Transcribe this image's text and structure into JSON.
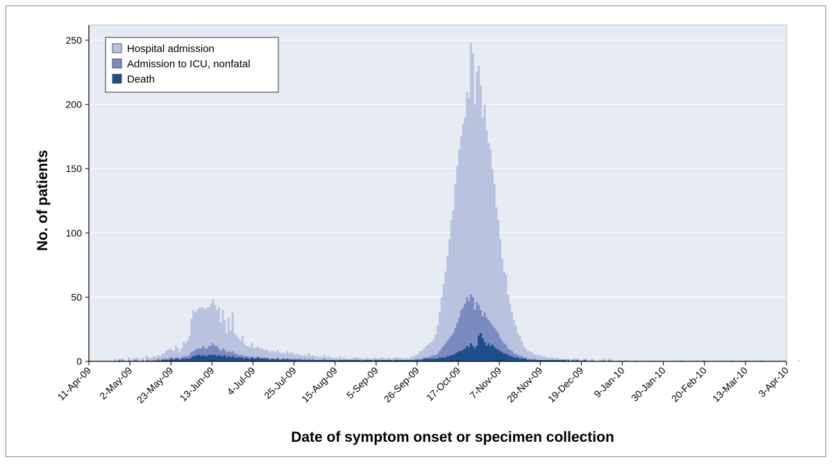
{
  "chart_data": {
    "type": "bar",
    "title": "",
    "xlabel": "Date of symptom onset or specimen collection",
    "ylabel": "No. of patients",
    "ylim": [
      0,
      250
    ],
    "yticks": [
      0,
      50,
      100,
      150,
      200,
      250
    ],
    "grid": true,
    "legend_position": "top-left",
    "x_tick_labels": [
      "11-Apr-09",
      "2-May-09",
      "23-May-09",
      "13-Jun-09",
      "4-Jul-09",
      "25-Jul-09",
      "15-Aug-09",
      "5-Sep-09",
      "26-Sep-09",
      "17-Oct-09",
      "7-Nov-09",
      "28-Nov-09",
      "19-Dec-09",
      "9-Jan-10",
      "30-Jan-10",
      "20-Feb-10",
      "13-Mar-10",
      "3-Apr-10"
    ],
    "x_start_label": "11-Apr-09",
    "x_days_total": 357,
    "bar_unit": "days",
    "series": [
      {
        "name": "Hospital admission",
        "color": "#b9c3e0",
        "values": [
          0,
          0,
          0,
          0,
          0,
          0,
          0,
          0,
          0,
          0,
          0,
          0,
          0,
          2,
          0,
          2,
          2,
          2,
          0,
          0,
          3,
          0,
          2,
          2,
          3,
          2,
          0,
          3,
          0,
          4,
          3,
          2,
          3,
          4,
          3,
          5,
          4,
          6,
          6,
          8,
          9,
          10,
          9,
          8,
          12,
          10,
          7,
          10,
          15,
          14,
          16,
          20,
          33,
          40,
          38,
          40,
          42,
          42,
          42,
          40,
          42,
          42,
          45,
          48,
          44,
          40,
          42,
          30,
          40,
          32,
          22,
          34,
          24,
          38,
          22,
          20,
          18,
          16,
          20,
          14,
          12,
          12,
          11,
          14,
          10,
          11,
          12,
          10,
          10,
          9,
          9,
          9,
          7,
          8,
          8,
          7,
          9,
          7,
          6,
          7,
          6,
          8,
          6,
          7,
          6,
          5,
          6,
          5,
          5,
          4,
          5,
          4,
          6,
          4,
          5,
          4,
          4,
          3,
          4,
          3,
          5,
          3,
          4,
          3,
          3,
          2,
          3,
          2,
          4,
          2,
          3,
          2,
          2,
          2,
          2,
          3,
          3,
          3,
          2,
          2,
          2,
          2,
          3,
          2,
          2,
          2,
          3,
          2,
          2,
          3,
          3,
          2,
          2,
          3,
          2,
          2,
          3,
          3,
          3,
          3,
          2,
          2,
          3,
          2,
          3,
          4,
          4,
          5,
          6,
          8,
          8,
          10,
          12,
          13,
          14,
          15,
          17,
          21,
          28,
          38,
          50,
          60,
          70,
          82,
          95,
          110,
          118,
          138,
          152,
          165,
          175,
          185,
          190,
          210,
          205,
          248,
          240,
          200,
          225,
          230,
          215,
          190,
          200,
          180,
          170,
          165,
          150,
          138,
          120,
          110,
          95,
          80,
          70,
          68,
          52,
          45,
          38,
          32,
          28,
          22,
          20,
          16,
          12,
          10,
          8,
          8,
          7,
          6,
          5,
          5,
          5,
          4,
          4,
          4,
          3,
          3,
          3,
          3,
          2,
          3,
          2,
          2,
          2,
          2,
          2,
          2,
          1,
          2,
          2,
          2,
          2,
          1,
          1,
          2,
          2,
          0,
          1,
          2,
          1,
          0,
          0,
          1,
          1,
          2,
          0,
          1,
          2,
          1,
          0,
          0,
          0,
          1,
          0,
          0,
          1,
          1,
          0,
          0,
          0,
          1,
          0,
          0,
          0,
          0,
          0,
          0,
          0,
          1,
          0,
          0,
          0,
          0,
          0,
          0,
          0,
          0,
          0,
          0,
          0,
          0,
          0,
          0,
          0,
          1,
          0,
          0,
          0,
          0,
          0,
          0,
          0,
          0,
          0,
          0,
          1,
          0,
          0,
          0,
          0,
          0,
          0,
          0,
          0,
          0,
          0,
          0,
          0,
          0,
          0,
          1,
          0,
          0,
          0,
          0,
          0,
          0,
          0,
          0,
          0,
          0,
          0,
          0,
          0,
          0,
          1,
          0,
          0,
          0,
          0,
          0,
          0,
          0,
          0,
          0,
          0,
          0,
          0,
          0,
          0,
          0,
          0,
          0,
          0,
          1,
          0,
          0,
          0,
          0,
          0,
          0,
          0,
          0,
          0,
          0,
          0,
          0,
          0,
          0,
          0,
          0,
          0,
          0,
          0,
          0,
          0,
          0,
          0,
          0
        ]
      },
      {
        "name": "Admission to ICU, nonfatal",
        "color": "#7b8bbf",
        "values": [
          0,
          0,
          0,
          0,
          0,
          0,
          0,
          0,
          0,
          0,
          0,
          0,
          0,
          0,
          0,
          1,
          0,
          1,
          0,
          0,
          1,
          0,
          0,
          1,
          1,
          0,
          0,
          1,
          0,
          1,
          1,
          0,
          1,
          1,
          1,
          2,
          1,
          2,
          2,
          2,
          2,
          3,
          3,
          2,
          3,
          3,
          2,
          3,
          4,
          4,
          4,
          5,
          7,
          8,
          9,
          10,
          10,
          10,
          12,
          10,
          10,
          12,
          12,
          14,
          12,
          12,
          10,
          8,
          10,
          9,
          7,
          8,
          7,
          8,
          6,
          6,
          5,
          5,
          5,
          4,
          4,
          4,
          3,
          4,
          3,
          3,
          4,
          3,
          3,
          3,
          3,
          3,
          2,
          2,
          2,
          2,
          3,
          2,
          2,
          2,
          2,
          2,
          2,
          2,
          2,
          2,
          2,
          2,
          2,
          1,
          2,
          1,
          2,
          1,
          2,
          1,
          1,
          1,
          1,
          1,
          2,
          1,
          1,
          1,
          1,
          1,
          1,
          1,
          1,
          1,
          1,
          1,
          1,
          1,
          1,
          1,
          1,
          1,
          1,
          1,
          1,
          1,
          1,
          1,
          1,
          1,
          1,
          1,
          1,
          1,
          1,
          1,
          1,
          1,
          1,
          1,
          1,
          1,
          1,
          1,
          1,
          1,
          1,
          1,
          1,
          1,
          1,
          2,
          2,
          2,
          2,
          3,
          3,
          3,
          4,
          4,
          5,
          5,
          6,
          8,
          10,
          12,
          14,
          16,
          18,
          20,
          22,
          26,
          30,
          34,
          40,
          42,
          45,
          50,
          47,
          52,
          50,
          40,
          46,
          44,
          40,
          35,
          38,
          34,
          32,
          30,
          28,
          26,
          24,
          22,
          18,
          16,
          14,
          13,
          10,
          9,
          8,
          6,
          6,
          5,
          4,
          4,
          3,
          3,
          2,
          2,
          2,
          2,
          2,
          1,
          1,
          1,
          1,
          1,
          1,
          1,
          1,
          1,
          1,
          1,
          1,
          1,
          1,
          1,
          1,
          1,
          0,
          1,
          1,
          1,
          1,
          0,
          0,
          1,
          1,
          0,
          0,
          1,
          0,
          0,
          0,
          0,
          0,
          1,
          0,
          0,
          1,
          0,
          0,
          0,
          0,
          0,
          0,
          0,
          0,
          0,
          0,
          0,
          0,
          0,
          0,
          0,
          0,
          0,
          0,
          0,
          0,
          0,
          0,
          0,
          0,
          0,
          0,
          0,
          0,
          0,
          0,
          0,
          0,
          0,
          0,
          0,
          0,
          0,
          0,
          0,
          0,
          0,
          0,
          0,
          0,
          0,
          0,
          0,
          0,
          0,
          0,
          0,
          0,
          0,
          0,
          0,
          0,
          0,
          0,
          0,
          0,
          0,
          0,
          0,
          0,
          0,
          0,
          0,
          0,
          0,
          0,
          0,
          0,
          0,
          0,
          0,
          0,
          0,
          0,
          0,
          0,
          0,
          0,
          0,
          0,
          0,
          0,
          0,
          0,
          0,
          0,
          0,
          0,
          0,
          0,
          0,
          0,
          0,
          0,
          0,
          0,
          0,
          0,
          0,
          0,
          0,
          0,
          0,
          0,
          0,
          0,
          0,
          0,
          0
        ]
      },
      {
        "name": "Death",
        "color": "#1b4f8c",
        "values": [
          0,
          0,
          0,
          0,
          0,
          0,
          0,
          0,
          0,
          0,
          0,
          0,
          0,
          0,
          0,
          0,
          0,
          0,
          0,
          0,
          0,
          0,
          0,
          0,
          0,
          0,
          0,
          0,
          0,
          0,
          0,
          0,
          0,
          0,
          0,
          1,
          0,
          1,
          1,
          1,
          1,
          1,
          2,
          1,
          2,
          2,
          1,
          2,
          2,
          2,
          2,
          2,
          3,
          4,
          4,
          5,
          5,
          4,
          5,
          4,
          4,
          5,
          5,
          5,
          5,
          4,
          5,
          4,
          4,
          5,
          3,
          4,
          3,
          4,
          3,
          3,
          3,
          3,
          3,
          2,
          3,
          2,
          2,
          3,
          2,
          2,
          3,
          2,
          2,
          2,
          2,
          2,
          1,
          2,
          2,
          1,
          2,
          1,
          1,
          2,
          1,
          2,
          1,
          1,
          1,
          1,
          1,
          1,
          1,
          1,
          1,
          1,
          1,
          1,
          1,
          1,
          1,
          1,
          1,
          1,
          1,
          1,
          1,
          1,
          1,
          1,
          0,
          1,
          1,
          1,
          1,
          1,
          1,
          1,
          1,
          1,
          1,
          1,
          1,
          0,
          1,
          1,
          1,
          1,
          1,
          0,
          1,
          1,
          1,
          1,
          1,
          1,
          1,
          1,
          1,
          0,
          1,
          1,
          1,
          1,
          1,
          1,
          1,
          1,
          1,
          1,
          1,
          1,
          1,
          1,
          1,
          2,
          2,
          2,
          2,
          2,
          2,
          2,
          2,
          3,
          3,
          3,
          3,
          4,
          4,
          5,
          5,
          6,
          7,
          8,
          8,
          9,
          10,
          12,
          11,
          14,
          12,
          10,
          12,
          20,
          22,
          18,
          15,
          12,
          14,
          12,
          13,
          11,
          10,
          9,
          8,
          7,
          6,
          6,
          5,
          4,
          4,
          3,
          3,
          3,
          2,
          2,
          2,
          2,
          1,
          1,
          1,
          1,
          1,
          1,
          1,
          1,
          1,
          1,
          1,
          1,
          1,
          1,
          1,
          1,
          1,
          1,
          1,
          1,
          0,
          1,
          0,
          1,
          0,
          1,
          0,
          0,
          0,
          1,
          0,
          0,
          0,
          0,
          0,
          0,
          0,
          0,
          0,
          0,
          0,
          0,
          0,
          0,
          0,
          0,
          0,
          0,
          0,
          0,
          0,
          0,
          0,
          0,
          0,
          0,
          0,
          0,
          0,
          0,
          0,
          0,
          0,
          0,
          0,
          0,
          0,
          0,
          0,
          0,
          0,
          0,
          0,
          0,
          0,
          0,
          0,
          0,
          0,
          0,
          0,
          0,
          0,
          0,
          0,
          0,
          0,
          0,
          0,
          0,
          0,
          0,
          0,
          0,
          0,
          0,
          0,
          0,
          0,
          0,
          0,
          0,
          0,
          0,
          0,
          0,
          0,
          0,
          0,
          0,
          0,
          0,
          0,
          0,
          0,
          0,
          0,
          0,
          0,
          0,
          0,
          0,
          0,
          0,
          0,
          0,
          0,
          0,
          0,
          0,
          0,
          0,
          0,
          0,
          0,
          0,
          0,
          0,
          0,
          0,
          0,
          0,
          0,
          0,
          0,
          0,
          0,
          0,
          0,
          0,
          0
        ]
      }
    ],
    "colors": {
      "plot_background": "#e7ebf3",
      "gridline": "#ffffff",
      "axis": "#000000",
      "frame": "#8c8c8c"
    }
  }
}
